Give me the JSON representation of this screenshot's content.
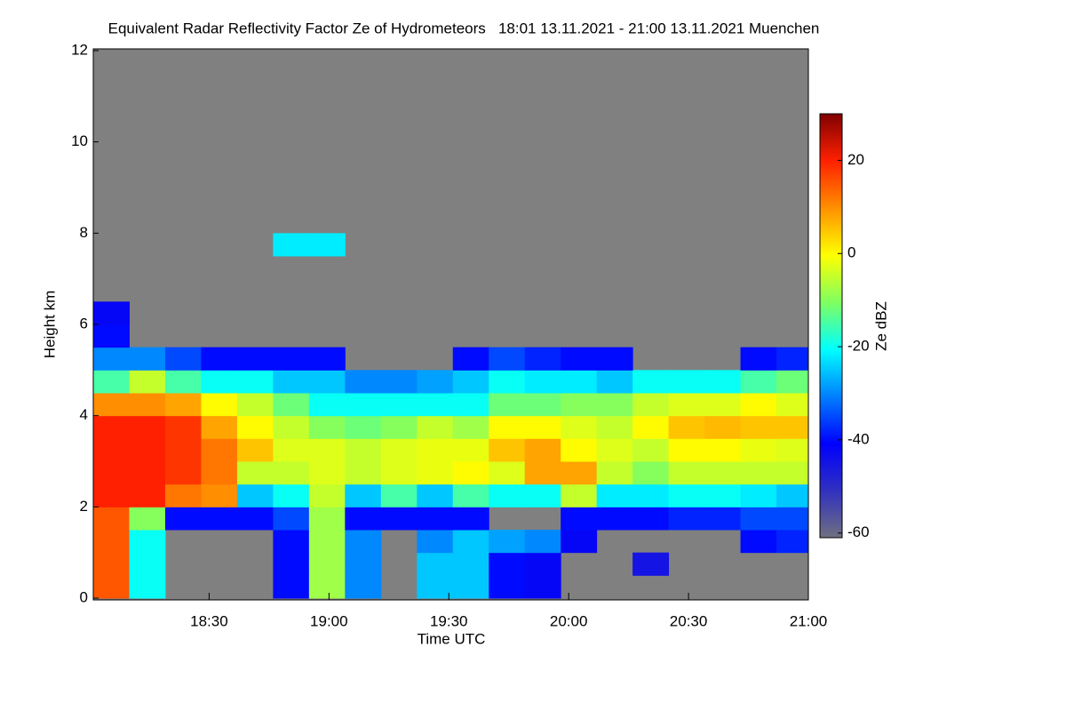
{
  "chart_data": {
    "type": "heatmap",
    "title": "Equivalent Radar Reflectivity Factor Ze of Hydrometeors   18:01 13.11.2021 - 21:00 13.11.2021 Muenchen",
    "xlabel": "Time UTC",
    "ylabel": "Height km",
    "colorbar_label": "Ze dBZ",
    "x": [
      1081,
      1090,
      1099,
      1108,
      1117,
      1126,
      1135,
      1144,
      1153,
      1162,
      1171,
      1180,
      1189,
      1198,
      1207,
      1216,
      1225,
      1234,
      1243,
      1252
    ],
    "y": [
      0,
      0.5,
      1,
      1.5,
      2,
      2.5,
      3,
      3.5,
      4,
      4.5,
      5,
      5.5,
      6,
      6.5,
      7,
      7.5
    ],
    "values": [
      [
        15,
        -20,
        null,
        null,
        null,
        -40,
        -8,
        -30,
        null,
        -25,
        -25,
        -40,
        -42,
        null,
        null,
        null,
        null,
        null,
        null,
        null
      ],
      [
        15,
        -20,
        null,
        null,
        null,
        -40,
        -8,
        -30,
        null,
        -25,
        -25,
        -40,
        -42,
        null,
        null,
        -45,
        null,
        null,
        null,
        null
      ],
      [
        15,
        -20,
        null,
        null,
        null,
        -40,
        -8,
        -30,
        null,
        -30,
        -25,
        -28,
        -30,
        -42,
        null,
        null,
        null,
        null,
        -40,
        -38
      ],
      [
        15,
        -10,
        -40,
        -40,
        -40,
        -35,
        -8,
        -40,
        -40,
        -40,
        -40,
        null,
        null,
        -40,
        -40,
        -40,
        -38,
        -38,
        -35,
        -35
      ],
      [
        20,
        20,
        12,
        10,
        -25,
        -20,
        -5,
        -25,
        -15,
        -25,
        -15,
        -20,
        -20,
        -5,
        -22,
        -22,
        -20,
        -20,
        -22,
        -25
      ],
      [
        20,
        20,
        18,
        12,
        -5,
        -5,
        -3,
        -5,
        -3,
        -2,
        0,
        -3,
        8,
        8,
        -5,
        -10,
        -5,
        -5,
        -5,
        -5
      ],
      [
        20,
        20,
        18,
        12,
        5,
        -3,
        -3,
        -5,
        -3,
        -2,
        -2,
        5,
        8,
        0,
        -3,
        -5,
        0,
        0,
        -2,
        -3
      ],
      [
        20,
        20,
        18,
        8,
        0,
        -5,
        -10,
        -12,
        -10,
        -5,
        -8,
        0,
        0,
        -3,
        -5,
        0,
        5,
        6,
        5,
        5
      ],
      [
        10,
        10,
        8,
        0,
        -5,
        -12,
        -20,
        -20,
        -20,
        -20,
        -20,
        -12,
        -12,
        -10,
        -10,
        -5,
        -3,
        -3,
        0,
        -3
      ],
      [
        -15,
        -5,
        -15,
        -20,
        -20,
        -25,
        -25,
        -30,
        -30,
        -28,
        -25,
        -20,
        -22,
        -22,
        -25,
        -20,
        -20,
        -20,
        -15,
        -12
      ],
      [
        -30,
        -30,
        -35,
        -40,
        -40,
        -40,
        -40,
        null,
        null,
        null,
        -40,
        -35,
        -38,
        -40,
        -40,
        null,
        null,
        null,
        -40,
        -38
      ],
      [
        -40,
        null,
        null,
        null,
        null,
        null,
        null,
        null,
        null,
        null,
        null,
        null,
        null,
        null,
        null,
        null,
        null,
        null,
        null,
        null
      ],
      [
        -42,
        null,
        null,
        null,
        null,
        null,
        null,
        null,
        null,
        null,
        null,
        null,
        null,
        null,
        null,
        null,
        null,
        null,
        null,
        null
      ],
      [
        null,
        null,
        null,
        null,
        null,
        null,
        null,
        null,
        null,
        null,
        null,
        null,
        null,
        null,
        null,
        null,
        null,
        null,
        null,
        null
      ],
      [
        null,
        null,
        null,
        null,
        null,
        null,
        null,
        null,
        null,
        null,
        null,
        null,
        null,
        null,
        null,
        null,
        null,
        null,
        null,
        null
      ],
      [
        null,
        null,
        null,
        null,
        null,
        -22,
        -22,
        null,
        null,
        null,
        null,
        null,
        null,
        null,
        null,
        null,
        null,
        null,
        null,
        null
      ]
    ],
    "xlim": [
      1081,
      1260
    ],
    "xticks": [
      {
        "value": 1110,
        "label": "18:30"
      },
      {
        "value": 1140,
        "label": "19:00"
      },
      {
        "value": 1170,
        "label": "19:30"
      },
      {
        "value": 1200,
        "label": "20:00"
      },
      {
        "value": 1230,
        "label": "20:30"
      },
      {
        "value": 1260,
        "label": "21:00"
      }
    ],
    "ylim": [
      0,
      12
    ],
    "yticks": [
      0,
      2,
      4,
      6,
      8,
      10,
      12
    ],
    "zlim": [
      -61,
      30
    ],
    "zticks": [
      -60,
      -40,
      -20,
      0,
      20
    ],
    "colorscale": [
      "#707080",
      "#3030c0",
      "#0000ff",
      "#0080ff",
      "#00ffff",
      "#80ff60",
      "#ffff00",
      "#ff9000",
      "#ff2000",
      "#800000"
    ]
  }
}
